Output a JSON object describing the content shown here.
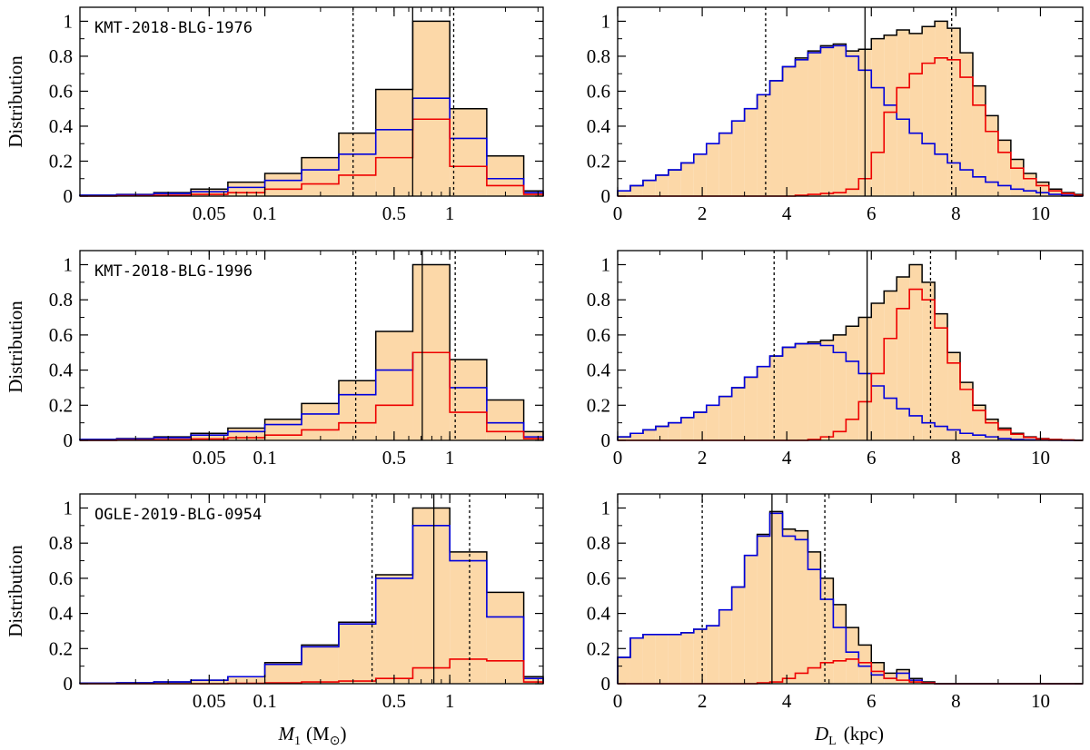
{
  "colors": {
    "fill": "#fcd8a8",
    "total": "#000000",
    "disk": "#0000dd",
    "bulge": "#ee0000"
  },
  "axis_titles": {
    "y": "Distribution",
    "x_mass_symbol": "M",
    "x_mass_sub": "1",
    "x_mass_unit_open": "(M",
    "x_mass_unit_sun": "⊙",
    "x_mass_unit_close": ")",
    "x_dist_symbol": "D",
    "x_dist_sub": "L",
    "x_dist_unit": "(kpc)"
  },
  "chart_data": [
    {
      "type": "histogram",
      "event": "KMT-2018-BLG-1976",
      "quantity": "mass",
      "xscale": "log",
      "xlim": [
        0.01,
        3.2
      ],
      "ylim": [
        0,
        1.08
      ],
      "xticks": [
        0.05,
        0.1,
        0.5,
        1
      ],
      "xtick_labels": [
        "0.05",
        "0.1",
        "0.5",
        "1"
      ],
      "yticks": [
        0,
        0.2,
        0.4,
        0.6,
        0.8,
        1
      ],
      "ytick_labels": [
        "0",
        "0.2",
        "0.4",
        "0.6",
        "0.8",
        "1"
      ],
      "bin_edges": [
        0.01,
        0.0158,
        0.0251,
        0.0398,
        0.0631,
        0.1,
        0.158,
        0.251,
        0.398,
        0.631,
        1.0,
        1.585,
        2.512,
        3.2
      ],
      "total": [
        0.005,
        0.01,
        0.02,
        0.04,
        0.08,
        0.13,
        0.22,
        0.36,
        0.61,
        1.0,
        0.5,
        0.23,
        0.03
      ],
      "disk": [
        0.005,
        0.008,
        0.015,
        0.025,
        0.05,
        0.09,
        0.15,
        0.24,
        0.38,
        0.56,
        0.33,
        0.1,
        0.02
      ],
      "bulge": [
        0.0,
        0.002,
        0.005,
        0.01,
        0.02,
        0.04,
        0.07,
        0.12,
        0.22,
        0.44,
        0.17,
        0.06,
        0.01
      ],
      "median": 0.63,
      "interval": [
        0.3,
        1.05
      ]
    },
    {
      "type": "histogram",
      "event": "",
      "quantity": "distance",
      "xscale": "linear",
      "xlim": [
        0,
        11
      ],
      "ylim": [
        0,
        1.08
      ],
      "xticks": [
        0,
        2,
        4,
        6,
        8,
        10
      ],
      "xtick_labels": [
        "0",
        "2",
        "4",
        "6",
        "8",
        "10"
      ],
      "yticks": [
        0,
        0.2,
        0.4,
        0.6,
        0.8,
        1
      ],
      "ytick_labels": [
        "0",
        "0.2",
        "0.4",
        "0.6",
        "0.8",
        "1"
      ],
      "bin_edges": [
        0,
        0.3,
        0.6,
        0.9,
        1.2,
        1.5,
        1.8,
        2.1,
        2.4,
        2.7,
        3.0,
        3.3,
        3.6,
        3.9,
        4.2,
        4.5,
        4.8,
        5.1,
        5.4,
        5.7,
        6.0,
        6.3,
        6.6,
        6.9,
        7.2,
        7.5,
        7.8,
        8.1,
        8.4,
        8.7,
        9.0,
        9.3,
        9.6,
        9.9,
        10.2,
        10.5,
        10.8,
        11.0
      ],
      "total": [
        0.03,
        0.06,
        0.09,
        0.12,
        0.15,
        0.19,
        0.24,
        0.3,
        0.36,
        0.43,
        0.5,
        0.58,
        0.66,
        0.74,
        0.79,
        0.83,
        0.86,
        0.87,
        0.83,
        0.84,
        0.9,
        0.92,
        0.95,
        0.93,
        0.97,
        1.0,
        0.96,
        0.82,
        0.63,
        0.46,
        0.32,
        0.21,
        0.13,
        0.08,
        0.04,
        0.02,
        0.01
      ],
      "disk": [
        0.03,
        0.06,
        0.09,
        0.12,
        0.15,
        0.19,
        0.24,
        0.3,
        0.36,
        0.43,
        0.5,
        0.58,
        0.66,
        0.74,
        0.78,
        0.82,
        0.85,
        0.86,
        0.8,
        0.72,
        0.62,
        0.52,
        0.44,
        0.36,
        0.3,
        0.24,
        0.19,
        0.15,
        0.11,
        0.08,
        0.06,
        0.04,
        0.03,
        0.02,
        0.01,
        0.005,
        0.0
      ],
      "bulge": [
        0,
        0,
        0,
        0,
        0,
        0,
        0,
        0,
        0,
        0,
        0,
        0,
        0,
        0,
        0.005,
        0.01,
        0.015,
        0.02,
        0.04,
        0.1,
        0.25,
        0.48,
        0.62,
        0.7,
        0.76,
        0.79,
        0.78,
        0.68,
        0.52,
        0.37,
        0.25,
        0.16,
        0.1,
        0.06,
        0.03,
        0.015,
        0.005
      ],
      "median": 5.85,
      "interval": [
        3.5,
        7.9
      ]
    },
    {
      "type": "histogram",
      "event": "KMT-2018-BLG-1996",
      "quantity": "mass",
      "xscale": "log",
      "xlim": [
        0.01,
        3.2
      ],
      "ylim": [
        0,
        1.08
      ],
      "xticks": [
        0.05,
        0.1,
        0.5,
        1
      ],
      "xtick_labels": [
        "0.05",
        "0.1",
        "0.5",
        "1"
      ],
      "yticks": [
        0,
        0.2,
        0.4,
        0.6,
        0.8,
        1
      ],
      "ytick_labels": [
        "0",
        "0.2",
        "0.4",
        "0.6",
        "0.8",
        "1"
      ],
      "bin_edges": [
        0.01,
        0.0158,
        0.0251,
        0.0398,
        0.0631,
        0.1,
        0.158,
        0.251,
        0.398,
        0.631,
        1.0,
        1.585,
        2.512,
        3.2
      ],
      "total": [
        0.005,
        0.01,
        0.02,
        0.04,
        0.07,
        0.12,
        0.21,
        0.34,
        0.62,
        1.0,
        0.46,
        0.23,
        0.05
      ],
      "disk": [
        0.005,
        0.008,
        0.015,
        0.03,
        0.05,
        0.09,
        0.15,
        0.26,
        0.4,
        0.5,
        0.3,
        0.1,
        0.02
      ],
      "bulge": [
        0.0,
        0.002,
        0.004,
        0.008,
        0.015,
        0.03,
        0.06,
        0.1,
        0.2,
        0.5,
        0.16,
        0.05,
        0.01
      ],
      "median": 0.71,
      "interval": [
        0.31,
        1.07
      ]
    },
    {
      "type": "histogram",
      "event": "",
      "quantity": "distance",
      "xscale": "linear",
      "xlim": [
        0,
        11
      ],
      "ylim": [
        0,
        1.08
      ],
      "xticks": [
        0,
        2,
        4,
        6,
        8,
        10
      ],
      "xtick_labels": [
        "0",
        "2",
        "4",
        "6",
        "8",
        "10"
      ],
      "yticks": [
        0,
        0.2,
        0.4,
        0.6,
        0.8,
        1
      ],
      "ytick_labels": [
        "0",
        "0.2",
        "0.4",
        "0.6",
        "0.8",
        "1"
      ],
      "bin_edges": [
        0,
        0.3,
        0.6,
        0.9,
        1.2,
        1.5,
        1.8,
        2.1,
        2.4,
        2.7,
        3.0,
        3.3,
        3.6,
        3.9,
        4.2,
        4.5,
        4.8,
        5.1,
        5.4,
        5.7,
        6.0,
        6.3,
        6.6,
        6.9,
        7.2,
        7.5,
        7.8,
        8.1,
        8.4,
        8.7,
        9.0,
        9.3,
        9.6,
        9.9,
        10.2,
        10.5,
        10.8,
        11.0
      ],
      "total": [
        0.02,
        0.04,
        0.06,
        0.08,
        0.1,
        0.13,
        0.16,
        0.2,
        0.25,
        0.3,
        0.36,
        0.42,
        0.48,
        0.53,
        0.55,
        0.56,
        0.57,
        0.6,
        0.65,
        0.7,
        0.78,
        0.85,
        0.93,
        1.0,
        0.9,
        0.72,
        0.5,
        0.33,
        0.2,
        0.12,
        0.07,
        0.04,
        0.02,
        0.01,
        0.005,
        0.002,
        0.0
      ],
      "disk": [
        0.02,
        0.04,
        0.06,
        0.08,
        0.1,
        0.13,
        0.16,
        0.2,
        0.25,
        0.3,
        0.36,
        0.42,
        0.48,
        0.53,
        0.55,
        0.55,
        0.54,
        0.5,
        0.45,
        0.38,
        0.31,
        0.24,
        0.18,
        0.14,
        0.1,
        0.08,
        0.06,
        0.04,
        0.03,
        0.02,
        0.01,
        0.005,
        0.003,
        0.002,
        0.001,
        0.0,
        0.0
      ],
      "bulge": [
        0,
        0,
        0,
        0,
        0,
        0,
        0,
        0,
        0,
        0,
        0,
        0,
        0,
        0,
        0.0,
        0.005,
        0.02,
        0.05,
        0.12,
        0.22,
        0.38,
        0.58,
        0.75,
        0.86,
        0.8,
        0.64,
        0.44,
        0.29,
        0.17,
        0.1,
        0.06,
        0.035,
        0.017,
        0.008,
        0.004,
        0.002,
        0.0
      ],
      "median": 5.9,
      "interval": [
        3.7,
        7.4
      ]
    },
    {
      "type": "histogram",
      "event": "OGLE-2019-BLG-0954",
      "quantity": "mass",
      "xscale": "log",
      "xlim": [
        0.01,
        3.2
      ],
      "ylim": [
        0,
        1.08
      ],
      "xticks": [
        0.05,
        0.1,
        0.5,
        1
      ],
      "xtick_labels": [
        "0.05",
        "0.1",
        "0.5",
        "1"
      ],
      "yticks": [
        0,
        0.2,
        0.4,
        0.6,
        0.8,
        1
      ],
      "ytick_labels": [
        "0",
        "0.2",
        "0.4",
        "0.6",
        "0.8",
        "1"
      ],
      "bin_edges": [
        0.01,
        0.0158,
        0.0251,
        0.0398,
        0.0631,
        0.1,
        0.158,
        0.251,
        0.398,
        0.631,
        1.0,
        1.585,
        2.512,
        3.2
      ],
      "total": [
        0.003,
        0.005,
        0.01,
        0.02,
        0.04,
        0.12,
        0.22,
        0.35,
        0.62,
        1.0,
        0.75,
        0.52,
        0.04
      ],
      "disk": [
        0.003,
        0.005,
        0.01,
        0.02,
        0.04,
        0.11,
        0.21,
        0.34,
        0.6,
        0.9,
        0.7,
        0.38,
        0.03
      ],
      "bulge": [
        0,
        0,
        0,
        0,
        0.002,
        0.005,
        0.01,
        0.015,
        0.03,
        0.09,
        0.14,
        0.13,
        0.01
      ],
      "median": 0.82,
      "interval": [
        0.38,
        1.28
      ]
    },
    {
      "type": "histogram",
      "event": "",
      "quantity": "distance",
      "xscale": "linear",
      "xlim": [
        0,
        11
      ],
      "ylim": [
        0,
        1.08
      ],
      "xticks": [
        0,
        2,
        4,
        6,
        8,
        10
      ],
      "xtick_labels": [
        "0",
        "2",
        "4",
        "6",
        "8",
        "10"
      ],
      "yticks": [
        0,
        0.2,
        0.4,
        0.6,
        0.8,
        1
      ],
      "ytick_labels": [
        "0",
        "0.2",
        "0.4",
        "0.6",
        "0.8",
        "1"
      ],
      "bin_edges": [
        0,
        0.3,
        0.6,
        0.9,
        1.2,
        1.5,
        1.8,
        2.1,
        2.4,
        2.7,
        3.0,
        3.3,
        3.6,
        3.9,
        4.2,
        4.5,
        4.8,
        5.1,
        5.4,
        5.7,
        6.0,
        6.3,
        6.6,
        6.9,
        7.2,
        7.5,
        7.8,
        8.1,
        8.4,
        8.7,
        9.0,
        9.3,
        9.6,
        9.9,
        10.2,
        10.5,
        10.8,
        11.0
      ],
      "total": [
        0.15,
        0.26,
        0.28,
        0.28,
        0.28,
        0.29,
        0.31,
        0.33,
        0.42,
        0.55,
        0.73,
        0.85,
        0.98,
        0.88,
        0.87,
        0.75,
        0.6,
        0.45,
        0.32,
        0.22,
        0.12,
        0.06,
        0.08,
        0.03,
        0.01,
        0,
        0,
        0,
        0,
        0,
        0,
        0,
        0,
        0,
        0,
        0,
        0
      ],
      "disk": [
        0.15,
        0.26,
        0.28,
        0.28,
        0.28,
        0.29,
        0.31,
        0.33,
        0.42,
        0.55,
        0.73,
        0.84,
        0.97,
        0.84,
        0.82,
        0.65,
        0.48,
        0.32,
        0.18,
        0.1,
        0.05,
        0.03,
        0.06,
        0.02,
        0.005,
        0,
        0,
        0,
        0,
        0,
        0,
        0,
        0,
        0,
        0,
        0,
        0
      ],
      "bulge": [
        0,
        0,
        0,
        0,
        0,
        0,
        0,
        0,
        0,
        0,
        0,
        0.005,
        0.01,
        0.03,
        0.06,
        0.09,
        0.12,
        0.13,
        0.14,
        0.12,
        0.07,
        0.03,
        0.02,
        0.01,
        0.005,
        0,
        0,
        0,
        0,
        0,
        0,
        0,
        0,
        0,
        0,
        0,
        0
      ],
      "median": 3.65,
      "interval": [
        2.0,
        4.9
      ]
    }
  ]
}
